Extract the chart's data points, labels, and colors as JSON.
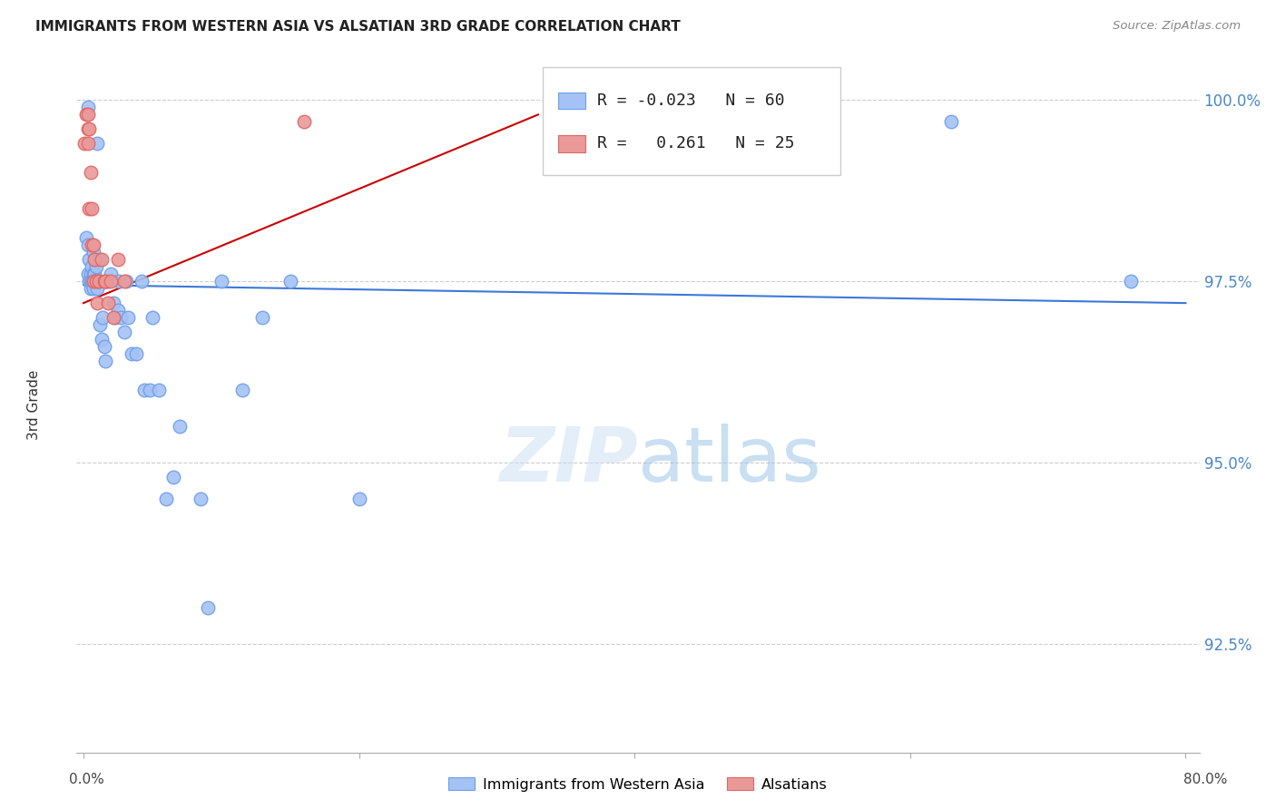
{
  "title": "IMMIGRANTS FROM WESTERN ASIA VS ALSATIAN 3RD GRADE CORRELATION CHART",
  "source": "Source: ZipAtlas.com",
  "ylabel": "3rd Grade",
  "xlim": [
    0.0,
    0.8
  ],
  "ylim": [
    0.91,
    1.006
  ],
  "blue_color": "#a4c2f4",
  "blue_edge": "#6d9eeb",
  "pink_color": "#ea9999",
  "pink_edge": "#e06666",
  "blue_line_color": "#3c78d8",
  "pink_line_color": "#cc0000",
  "legend_blue_r": "-0.023",
  "legend_blue_n": "60",
  "legend_pink_r": "0.261",
  "legend_pink_n": "25",
  "ytick_vals": [
    0.925,
    0.95,
    0.975,
    1.0
  ],
  "ytick_labels": [
    "92.5%",
    "95.0%",
    "97.5%",
    "100.0%"
  ],
  "blue_x": [
    0.002,
    0.003,
    0.003,
    0.003,
    0.004,
    0.004,
    0.005,
    0.005,
    0.005,
    0.006,
    0.006,
    0.007,
    0.007,
    0.007,
    0.007,
    0.008,
    0.008,
    0.008,
    0.009,
    0.009,
    0.01,
    0.01,
    0.01,
    0.011,
    0.011,
    0.012,
    0.013,
    0.014,
    0.015,
    0.016,
    0.017,
    0.018,
    0.02,
    0.022,
    0.023,
    0.025,
    0.026,
    0.027,
    0.03,
    0.031,
    0.032,
    0.035,
    0.038,
    0.042,
    0.044,
    0.048,
    0.05,
    0.055,
    0.06,
    0.065,
    0.07,
    0.085,
    0.09,
    0.1,
    0.115,
    0.13,
    0.15,
    0.2,
    0.63,
    0.76
  ],
  "blue_y": [
    0.981,
    0.98,
    0.976,
    0.999,
    0.978,
    0.975,
    0.976,
    0.975,
    0.974,
    0.977,
    0.975,
    0.979,
    0.976,
    0.975,
    0.974,
    0.978,
    0.976,
    0.975,
    0.977,
    0.975,
    0.994,
    0.975,
    0.974,
    0.978,
    0.975,
    0.969,
    0.967,
    0.97,
    0.966,
    0.964,
    0.975,
    0.975,
    0.976,
    0.972,
    0.97,
    0.971,
    0.975,
    0.97,
    0.968,
    0.975,
    0.97,
    0.965,
    0.965,
    0.975,
    0.96,
    0.96,
    0.97,
    0.96,
    0.945,
    0.948,
    0.955,
    0.945,
    0.93,
    0.975,
    0.96,
    0.97,
    0.975,
    0.945,
    0.997,
    0.975
  ],
  "pink_x": [
    0.001,
    0.002,
    0.003,
    0.003,
    0.003,
    0.004,
    0.004,
    0.005,
    0.006,
    0.006,
    0.007,
    0.007,
    0.008,
    0.009,
    0.01,
    0.011,
    0.013,
    0.015,
    0.016,
    0.018,
    0.02,
    0.022,
    0.025,
    0.03,
    0.16
  ],
  "pink_y": [
    0.994,
    0.998,
    0.998,
    0.996,
    0.994,
    0.996,
    0.985,
    0.99,
    0.985,
    0.98,
    0.98,
    0.975,
    0.978,
    0.975,
    0.972,
    0.975,
    0.978,
    0.975,
    0.975,
    0.972,
    0.975,
    0.97,
    0.978,
    0.975,
    0.997
  ]
}
